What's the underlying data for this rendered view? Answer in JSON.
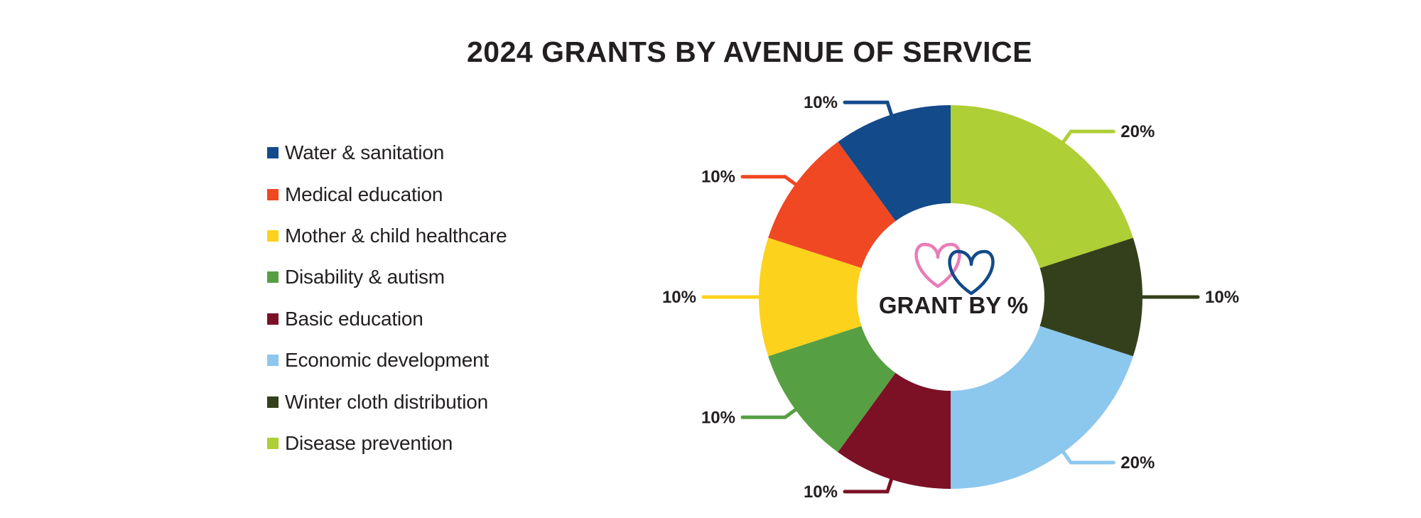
{
  "chart_data": {
    "type": "pie",
    "title": "2024 GRANTS BY AVENUE OF SERVICE",
    "center_label": "GRANT BY %",
    "categories": [
      "Water & sanitation",
      "Medical education",
      "Mother & child healthcare",
      "Disability & autism",
      "Basic education",
      "Economic development",
      "Winter cloth distribution",
      "Disease prevention"
    ],
    "values": [
      10,
      10,
      10,
      10,
      10,
      20,
      10,
      20
    ],
    "value_labels": [
      "10%",
      "10%",
      "10%",
      "10%",
      "10%",
      "20%",
      "10%",
      "20%"
    ],
    "colors": [
      "#134a8a",
      "#ef4823",
      "#fcd21c",
      "#579f43",
      "#7c1126",
      "#8cc7ee",
      "#34401b",
      "#aecf35"
    ],
    "legend_position": "left",
    "donut": true
  }
}
